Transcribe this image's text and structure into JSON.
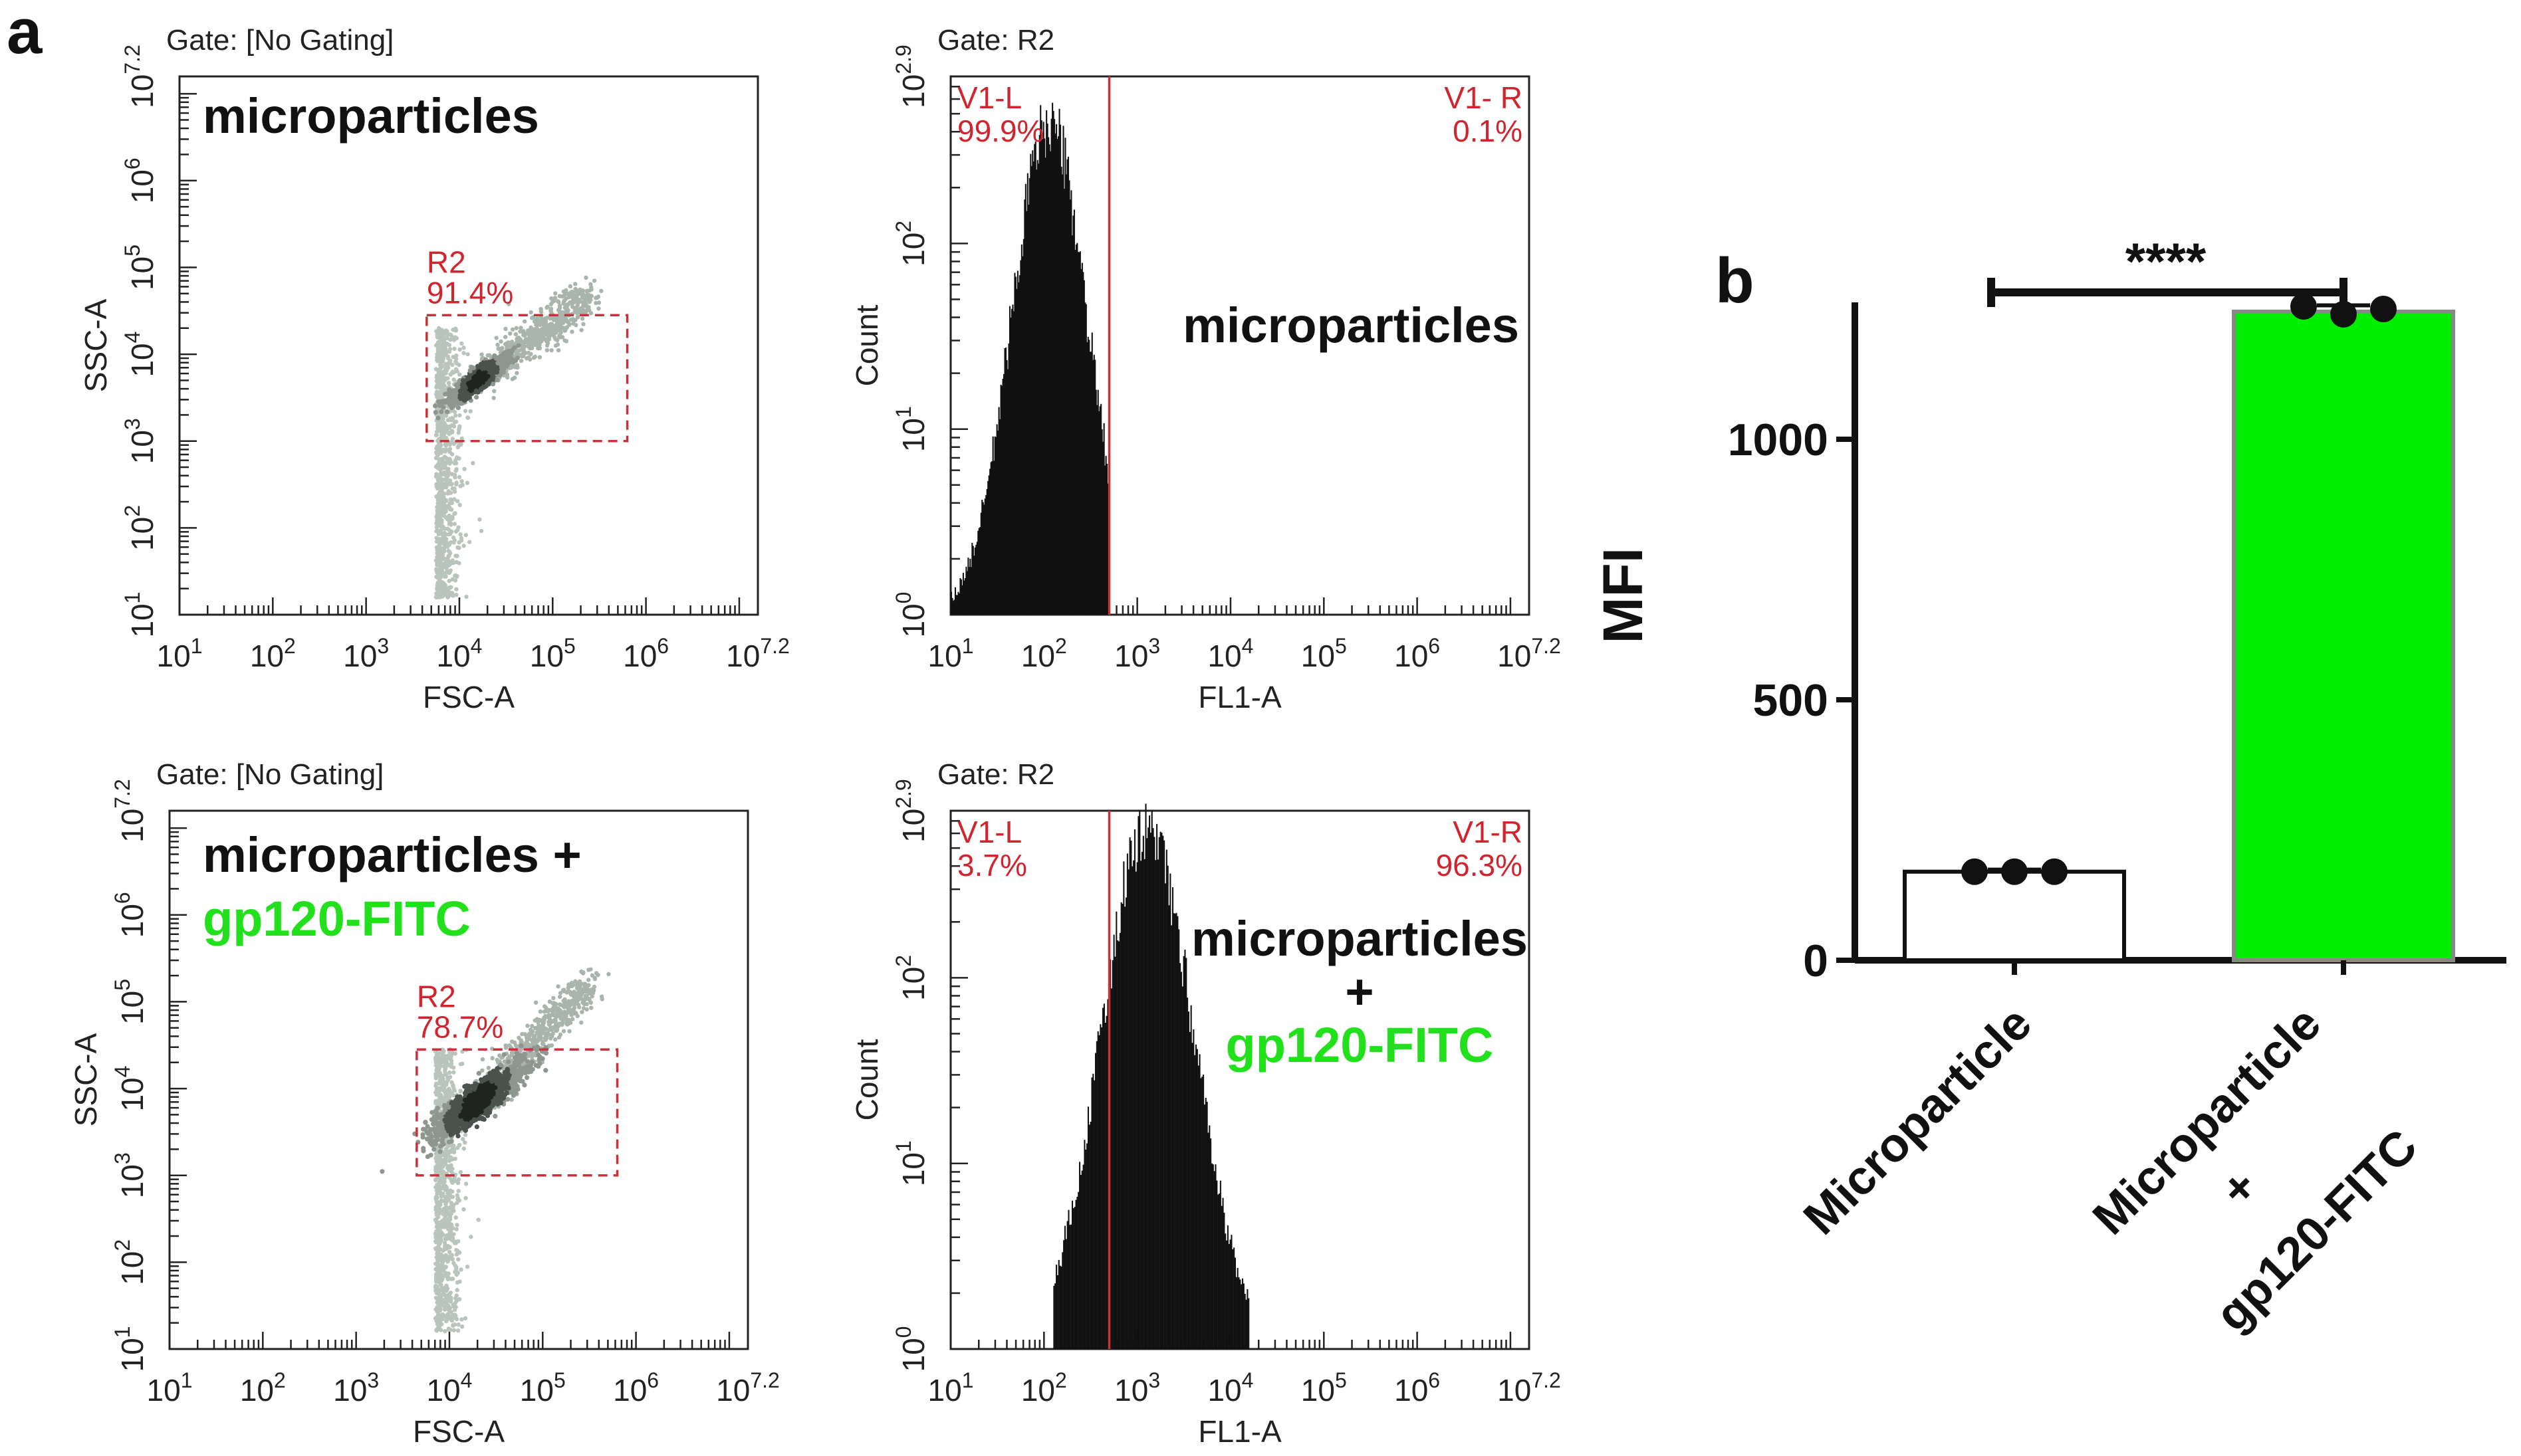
{
  "panel_a_label": "a",
  "panel_b_label": "b",
  "chart_data": [
    {
      "type": "scatter",
      "panel": "a-top-left",
      "gate": "Gate: [No Gating]",
      "title": "microparticles",
      "xlabel": "FSC-A",
      "ylabel": "SSC-A",
      "xlim_log10": [
        1,
        7.2
      ],
      "ylim_log10": [
        1,
        7.2
      ],
      "x_ticks": [
        {
          "base": "10",
          "exp": "1"
        },
        {
          "base": "10",
          "exp": "2"
        },
        {
          "base": "10",
          "exp": "3"
        },
        {
          "base": "10",
          "exp": "4"
        },
        {
          "base": "10",
          "exp": "5"
        },
        {
          "base": "10",
          "exp": "6"
        },
        {
          "base": "10",
          "exp": "7.2"
        }
      ],
      "y_ticks": [
        {
          "base": "10",
          "exp": "1"
        },
        {
          "base": "10",
          "exp": "2"
        },
        {
          "base": "10",
          "exp": "3"
        },
        {
          "base": "10",
          "exp": "4"
        },
        {
          "base": "10",
          "exp": "5"
        },
        {
          "base": "10",
          "exp": "6"
        },
        {
          "base": "10",
          "exp": "7.2"
        }
      ],
      "gate_region": {
        "name": "R2",
        "percent": "91.4%",
        "x_log10": [
          3.65,
          5.8
        ],
        "y_log10": [
          3.0,
          4.45
        ]
      },
      "population": {
        "center_log10": [
          4.2,
          3.7
        ],
        "spread": 0.12,
        "tail_end_log10": [
          5.4,
          4.7
        ]
      }
    },
    {
      "type": "histogram",
      "panel": "a-top-right",
      "gate": "Gate: R2",
      "title": "microparticles",
      "xlabel": "FL1-A",
      "ylabel": "Count",
      "xlim_log10": [
        1,
        7.2
      ],
      "ylim_log10": [
        0,
        2.9
      ],
      "x_ticks": [
        {
          "base": "10",
          "exp": "1"
        },
        {
          "base": "10",
          "exp": "2"
        },
        {
          "base": "10",
          "exp": "3"
        },
        {
          "base": "10",
          "exp": "4"
        },
        {
          "base": "10",
          "exp": "5"
        },
        {
          "base": "10",
          "exp": "6"
        },
        {
          "base": "10",
          "exp": "7.2"
        }
      ],
      "y_ticks": [
        {
          "base": "10",
          "exp": "0"
        },
        {
          "base": "10",
          "exp": "1"
        },
        {
          "base": "10",
          "exp": "2"
        },
        {
          "base": "10",
          "exp": "2.9"
        }
      ],
      "divider_log10": 2.7,
      "left_region": {
        "name": "V1-L",
        "percent": "99.9%"
      },
      "right_region": {
        "name": "V1- R",
        "percent": "0.1%"
      },
      "peak_log10": 2.05,
      "peak_count_log10": 2.65,
      "range_log10": [
        1.0,
        2.7
      ]
    },
    {
      "type": "scatter",
      "panel": "a-bottom-left",
      "gate": "Gate: [No Gating]",
      "title_line1": "microparticles +",
      "title_line2": "gp120-FITC",
      "xlabel": "FSC-A",
      "ylabel": "SSC-A",
      "xlim_log10": [
        1,
        7.2
      ],
      "ylim_log10": [
        1,
        7.2
      ],
      "x_ticks": [
        {
          "base": "10",
          "exp": "1"
        },
        {
          "base": "10",
          "exp": "2"
        },
        {
          "base": "10",
          "exp": "3"
        },
        {
          "base": "10",
          "exp": "4"
        },
        {
          "base": "10",
          "exp": "5"
        },
        {
          "base": "10",
          "exp": "6"
        },
        {
          "base": "10",
          "exp": "7.2"
        }
      ],
      "y_ticks": [
        {
          "base": "10",
          "exp": "1"
        },
        {
          "base": "10",
          "exp": "2"
        },
        {
          "base": "10",
          "exp": "3"
        },
        {
          "base": "10",
          "exp": "4"
        },
        {
          "base": "10",
          "exp": "5"
        },
        {
          "base": "10",
          "exp": "6"
        },
        {
          "base": "10",
          "exp": "7.2"
        }
      ],
      "gate_region": {
        "name": "R2",
        "percent": "78.7%",
        "x_log10": [
          3.65,
          5.8
        ],
        "y_log10": [
          3.0,
          4.45
        ]
      },
      "population": {
        "center_log10": [
          4.3,
          3.85
        ],
        "spread": 0.2,
        "tail_end_log10": [
          5.5,
          5.2
        ]
      }
    },
    {
      "type": "histogram",
      "panel": "a-bottom-right",
      "gate": "Gate: R2",
      "title_line1": "microparticles",
      "title_line2": "+",
      "title_line3": "gp120-FITC",
      "xlabel": "FL1-A",
      "ylabel": "Count",
      "xlim_log10": [
        1,
        7.2
      ],
      "ylim_log10": [
        0,
        2.9
      ],
      "x_ticks": [
        {
          "base": "10",
          "exp": "1"
        },
        {
          "base": "10",
          "exp": "2"
        },
        {
          "base": "10",
          "exp": "3"
        },
        {
          "base": "10",
          "exp": "4"
        },
        {
          "base": "10",
          "exp": "5"
        },
        {
          "base": "10",
          "exp": "6"
        },
        {
          "base": "10",
          "exp": "7.2"
        }
      ],
      "y_ticks": [
        {
          "base": "10",
          "exp": "0"
        },
        {
          "base": "10",
          "exp": "1"
        },
        {
          "base": "10",
          "exp": "2"
        },
        {
          "base": "10",
          "exp": "2.9"
        }
      ],
      "divider_log10": 2.7,
      "left_region": {
        "name": "V1-L",
        "percent": "3.7%"
      },
      "right_region": {
        "name": "V1-R",
        "percent": "96.3%"
      },
      "peak_log10": 3.1,
      "peak_count_log10": 2.8,
      "range_log10": [
        2.1,
        4.2
      ]
    },
    {
      "type": "bar",
      "panel": "b",
      "ylabel": "MFI",
      "ylim": [
        0,
        1250
      ],
      "y_ticks": [
        0,
        500,
        1000
      ],
      "categories": [
        "Microparticle",
        "Microparticle + gp120-FITC"
      ],
      "category_lines": [
        [
          "Microparticle"
        ],
        [
          "Microparticle",
          "+",
          "gp120-FITC"
        ]
      ],
      "values": [
        170,
        1245
      ],
      "points": [
        [
          170,
          170,
          170
        ],
        [
          1255,
          1240,
          1250
        ]
      ],
      "error": [
        4,
        12
      ],
      "bar_colors": [
        "#ffffff",
        "#00ee00"
      ],
      "significance": "****"
    }
  ]
}
